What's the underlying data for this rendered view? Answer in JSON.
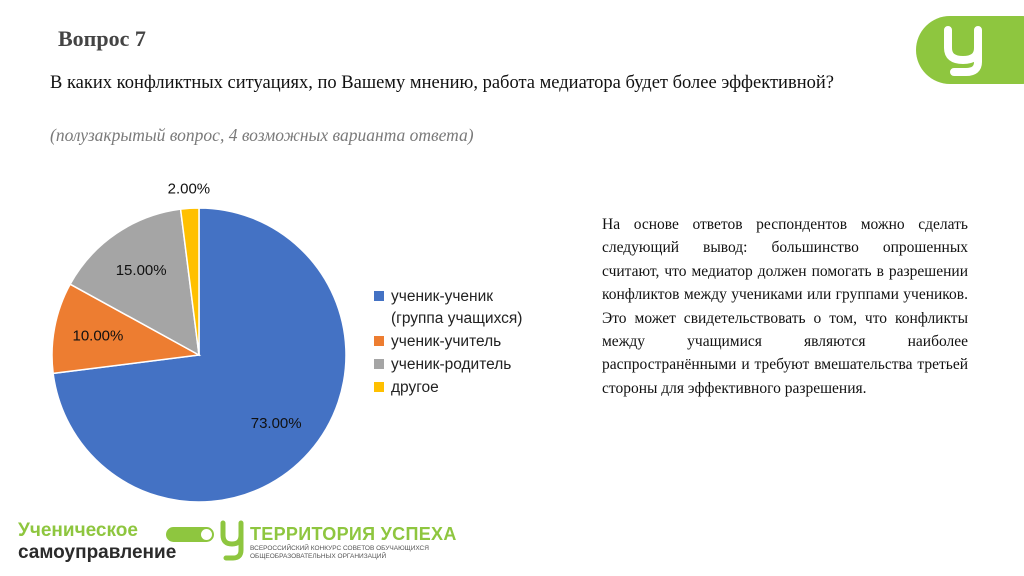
{
  "slide": {
    "title": "Вопрос 7",
    "question": "В каких конфликтных ситуациях, по Вашему мнению, работа медиатора будет более эффективной?",
    "question_note": "(полузакрытый вопрос, 4 возможных варианта ответа)",
    "conclusion": "На основе ответов респондентов можно сделать следующий вывод: большинство опрошенных считают, что медиатор должен помогать в разрешении конфликтов между учениками или группами учеников. Это может свидетельствовать о том, что конфликты между учащимися являются наиболее распространёнными и требуют вмешательства третьей стороны для эффективного разрешения."
  },
  "chart_data": {
    "type": "pie",
    "categories": [
      "ученик-ученик (группа учащихся)",
      "ученик-учитель",
      "ученик-родитель",
      "другое"
    ],
    "legend_lines": [
      [
        "ученик-ученик",
        "(группа учащихся)"
      ],
      [
        "ученик-учитель"
      ],
      [
        "ученик-родитель"
      ],
      [
        "другое"
      ]
    ],
    "values": [
      73.0,
      10.0,
      15.0,
      2.0
    ],
    "data_labels": [
      "73.00%",
      "10.00%",
      "15.00%",
      "2.00%"
    ],
    "colors": [
      "#4472C4",
      "#ED7D31",
      "#A5A5A5",
      "#FFC000"
    ],
    "legend_position": "right"
  },
  "footer": {
    "logo_line1": "Ученическое",
    "logo_line2": "самоуправление",
    "brand_name": "ТЕРРИТОРИЯ УСПЕХА",
    "brand_sub": "Всероссийский конкурс советов обучающихся общеобразовательных организаций"
  },
  "colors": {
    "brand_green": "#8ec63f"
  },
  "icons": {
    "brand_badge": "u-letter-logo"
  }
}
